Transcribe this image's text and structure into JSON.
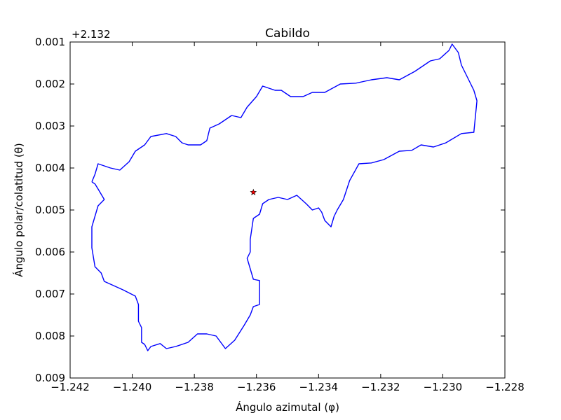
{
  "chart_data": {
    "type": "line",
    "title": "Cabildo",
    "xlabel": "Ángulo azimutal (φ)",
    "ylabel": "Ángulo polar/colatitud (θ)",
    "offset_label": "+2.132",
    "xlim": [
      -1.242,
      -1.228
    ],
    "ylim": [
      0.009,
      0.001
    ],
    "y_inverted": true,
    "x_ticks": [
      "−1.242",
      "−1.240",
      "−1.238",
      "−1.236",
      "−1.234",
      "−1.232",
      "−1.230",
      "−1.228"
    ],
    "y_ticks": [
      "0.001",
      "0.002",
      "0.003",
      "0.004",
      "0.005",
      "0.006",
      "0.007",
      "0.008",
      "0.009"
    ],
    "grid": false,
    "series": [
      {
        "color": "#0000ff",
        "x": [
          -1.2413,
          -1.2412,
          -1.2411,
          -1.2407,
          -1.2404,
          -1.2401,
          -1.2399,
          -1.2396,
          -1.2394,
          -1.2389,
          -1.2386,
          -1.2384,
          -1.2382,
          -1.2378,
          -1.2376,
          -1.2375,
          -1.2372,
          -1.237,
          -1.2368,
          -1.2365,
          -1.2363,
          -1.236,
          -1.2358,
          -1.2354,
          -1.2352,
          -1.2349,
          -1.2345,
          -1.2342,
          -1.2338,
          -1.2333,
          -1.2328,
          -1.2323,
          -1.2318,
          -1.2314,
          -1.2309,
          -1.2304,
          -1.2301,
          -1.2298,
          -1.2297,
          -1.2295,
          -1.2294,
          -1.2291,
          -1.229,
          -1.2289,
          -1.229,
          -1.2294,
          -1.2299,
          -1.2303,
          -1.2307,
          -1.231,
          -1.2314,
          -1.2319,
          -1.2323,
          -1.2327,
          -1.233,
          -1.2332,
          -1.2334,
          -1.2335,
          -1.2336,
          -1.2338,
          -1.2339,
          -1.234,
          -1.2342,
          -1.2344,
          -1.2347,
          -1.235,
          -1.2353,
          -1.2356,
          -1.2358,
          -1.2359,
          -1.2361,
          -1.2362,
          -1.2362,
          -1.2363,
          -1.2362,
          -1.2361,
          -1.2359,
          -1.2359,
          -1.2359,
          -1.2361,
          -1.2362,
          -1.2364,
          -1.2367,
          -1.237,
          -1.2373,
          -1.2376,
          -1.2379,
          -1.2382,
          -1.2386,
          -1.2389,
          -1.2391,
          -1.2394,
          -1.2395,
          -1.2396,
          -1.2397,
          -1.2397,
          -1.2398,
          -1.2398,
          -1.2398,
          -1.2399,
          -1.2403,
          -1.2406,
          -1.2409,
          -1.241,
          -1.2412,
          -1.2413,
          -1.2413,
          -1.2412,
          -1.2411,
          -1.2409,
          -1.2411,
          -1.2412,
          -1.2413
        ],
        "y": [
          0.00433,
          0.00415,
          0.0039,
          0.004,
          0.00405,
          0.00385,
          0.0036,
          0.00345,
          0.00325,
          0.00318,
          0.00325,
          0.0034,
          0.00345,
          0.00345,
          0.00335,
          0.00305,
          0.00295,
          0.00285,
          0.00275,
          0.0028,
          0.00255,
          0.0023,
          0.00205,
          0.00215,
          0.00215,
          0.0023,
          0.0023,
          0.0022,
          0.0022,
          0.002,
          0.00198,
          0.0019,
          0.00185,
          0.0019,
          0.0017,
          0.00145,
          0.0014,
          0.0012,
          0.00105,
          0.00125,
          0.00155,
          0.002,
          0.00215,
          0.0024,
          0.00315,
          0.00318,
          0.0034,
          0.0035,
          0.00345,
          0.00358,
          0.0036,
          0.0038,
          0.00388,
          0.0039,
          0.0043,
          0.00475,
          0.005,
          0.00515,
          0.0054,
          0.00525,
          0.00505,
          0.00495,
          0.005,
          0.00485,
          0.00465,
          0.00475,
          0.0047,
          0.00475,
          0.00485,
          0.0051,
          0.0052,
          0.0057,
          0.006,
          0.00615,
          0.0064,
          0.00665,
          0.00668,
          0.007,
          0.00725,
          0.0073,
          0.0075,
          0.00775,
          0.0081,
          0.0083,
          0.008,
          0.00795,
          0.00795,
          0.00815,
          0.00825,
          0.0083,
          0.00818,
          0.00825,
          0.00835,
          0.0082,
          0.00815,
          0.0078,
          0.00765,
          0.00745,
          0.00725,
          0.00705,
          0.0069,
          0.0068,
          0.0067,
          0.0065,
          0.00635,
          0.0059,
          0.0054,
          0.00515,
          0.0049,
          0.00475,
          0.0045,
          0.00438,
          0.00433
        ]
      },
      {
        "color": "#ff0000",
        "marker": "star",
        "x": [
          -1.2361
        ],
        "y": [
          0.00458
        ]
      }
    ]
  }
}
